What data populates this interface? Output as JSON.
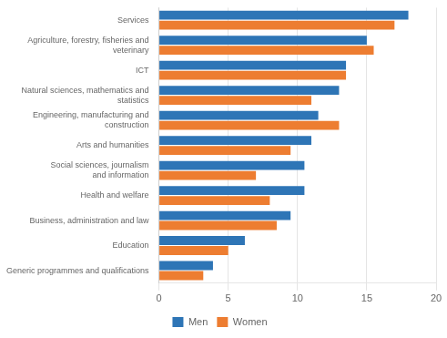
{
  "chart_data": {
    "type": "bar",
    "orientation": "horizontal",
    "categories": [
      "Services",
      "Agriculture, forestry, fisheries and\nveterinary",
      "ICT",
      "Natural sciences, mathematics and\nstatistics",
      "Engineering, manufacturing and\nconstruction",
      "Arts and humanities",
      "Social sciences, journalism\nand information",
      "Health and welfare",
      "Business, administration and law",
      "Education",
      "Generic programmes and qualifications"
    ],
    "series": [
      {
        "name": "Men",
        "color": "#2E75B6",
        "values": [
          18.0,
          15.0,
          13.5,
          13.0,
          11.5,
          11.0,
          10.5,
          10.5,
          9.5,
          6.2,
          3.9
        ]
      },
      {
        "name": "Women",
        "color": "#ED7D31",
        "values": [
          17.0,
          15.5,
          13.5,
          11.0,
          13.0,
          9.5,
          7.0,
          8.0,
          8.5,
          5.0,
          3.2
        ]
      }
    ],
    "xlim": [
      0,
      20
    ],
    "xticks": [
      0,
      5,
      10,
      15,
      20
    ],
    "grid": "x",
    "legend": "bottom"
  }
}
